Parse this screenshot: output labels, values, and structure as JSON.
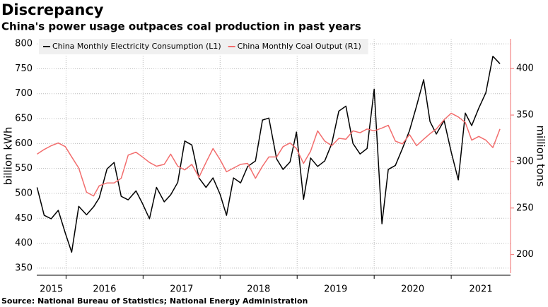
{
  "chart_data": {
    "type": "line",
    "title": "Discrepancy",
    "subtitle": "China's power usage outpaces coal production in past years",
    "source": "Source: National Bureau of Statistics; National Energy Administration",
    "ylabel": "billion kWh",
    "y2label": "million tons",
    "x": [
      2015.624,
      2015.716,
      2015.807,
      2015.899,
      2015.991,
      2016.073,
      2016.165,
      2016.266,
      2016.358,
      2016.431,
      2016.532,
      2016.624,
      2016.716,
      2016.807,
      2016.908,
      2016.991,
      2017.083,
      2017.174,
      2017.275,
      2017.358,
      2017.45,
      2017.541,
      2017.633,
      2017.725,
      2017.817,
      2017.908,
      2018,
      2018.083,
      2018.174,
      2018.266,
      2018.358,
      2018.459,
      2018.55,
      2018.633,
      2018.734,
      2018.817,
      2018.908,
      2018.991,
      2019.083,
      2019.174,
      2019.266,
      2019.358,
      2019.45,
      2019.541,
      2019.633,
      2019.725,
      2019.817,
      2019.908,
      2020,
      2020.101,
      2020.183,
      2020.275,
      2020.367,
      2020.459,
      2020.55,
      2020.642,
      2020.725,
      2020.807,
      2020.908,
      2021,
      2021.092,
      2021.183,
      2021.266,
      2021.358,
      2021.45,
      2021.541,
      2021.633
    ],
    "xlim": [
      2015.62,
      2021.77
    ],
    "xticks": [
      2015,
      2016,
      2017,
      2018,
      2019,
      2020,
      2021
    ],
    "ylim": [
      340,
      810
    ],
    "yticks": [
      350,
      400,
      450,
      500,
      550,
      600,
      650,
      700,
      750,
      800
    ],
    "y2lim": [
      180,
      432
    ],
    "y2ticks": [
      200,
      250,
      300,
      350,
      400
    ],
    "y2color": "#f26d6d",
    "grid": true,
    "legend": "top-left",
    "series": [
      {
        "name": "China Monthly Electricity Consumption (L1)",
        "color": "#000000",
        "values": [
          512,
          456,
          449,
          466,
          420,
          382,
          474,
          457,
          473,
          491,
          549,
          562,
          494,
          487,
          505,
          480,
          449,
          512,
          483,
          497,
          522,
          605,
          597,
          531,
          512,
          531,
          498,
          456,
          531,
          521,
          554,
          565,
          647,
          651,
          569,
          548,
          563,
          623,
          488,
          571,
          554,
          565,
          600,
          665,
          675,
          600,
          579,
          590,
          709,
          439,
          548,
          556,
          590,
          626,
          675,
          728,
          644,
          619,
          646,
          583,
          527,
          661,
          636,
          671,
          702,
          775,
          760
        ]
      },
      {
        "name": "China Monthly Coal Output (R1)",
        "color": "#f26d6d",
        "axis": "y2",
        "values": [
          308,
          313,
          317,
          320,
          316,
          305,
          293,
          267,
          263,
          274,
          277,
          277,
          282,
          307,
          310,
          305,
          299,
          295,
          297,
          308,
          295,
          291,
          297,
          283,
          299,
          314,
          302,
          289,
          293,
          297,
          298,
          282,
          295,
          305,
          305,
          316,
          320,
          314,
          298,
          311,
          333,
          322,
          317,
          325,
          324,
          333,
          331,
          335,
          333,
          336,
          339,
          322,
          319,
          329,
          317,
          324,
          330,
          335,
          345,
          352,
          348,
          342,
          323,
          327,
          323,
          315,
          335
        ]
      }
    ]
  }
}
